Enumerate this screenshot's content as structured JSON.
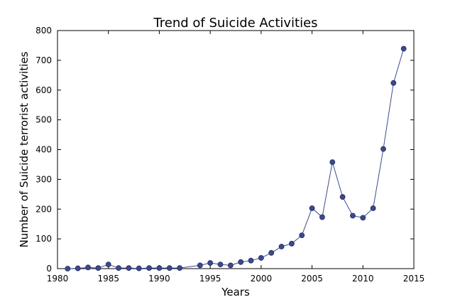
{
  "chart_data": {
    "type": "line",
    "title": "Trend of Suicide Activities",
    "xlabel": "Years",
    "ylabel": "Number of Suicide terrorist activities",
    "xlim": [
      1980,
      2015
    ],
    "ylim": [
      0,
      800
    ],
    "xticks": [
      1980,
      1985,
      1990,
      1995,
      2000,
      2005,
      2010,
      2015
    ],
    "yticks": [
      0,
      100,
      200,
      300,
      400,
      500,
      600,
      700,
      800
    ],
    "grid": false,
    "legend": "none",
    "series": [
      {
        "color": "#3b4a8f",
        "x": [
          1981,
          1982,
          1983,
          1984,
          1985,
          1986,
          1987,
          1988,
          1989,
          1990,
          1991,
          1992,
          1994,
          1995,
          1996,
          1997,
          1998,
          1999,
          2000,
          2001,
          2002,
          2003,
          2004,
          2005,
          2006,
          2007,
          2008,
          2009,
          2010,
          2011,
          2012,
          2013,
          2014
        ],
        "y": [
          0,
          1,
          4,
          2,
          14,
          2,
          2,
          1,
          2,
          2,
          2,
          2,
          11,
          19,
          14,
          11,
          22,
          27,
          36,
          53,
          74,
          84,
          112,
          203,
          173,
          358,
          241,
          178,
          171,
          203,
          402,
          624,
          739
        ]
      }
    ]
  }
}
